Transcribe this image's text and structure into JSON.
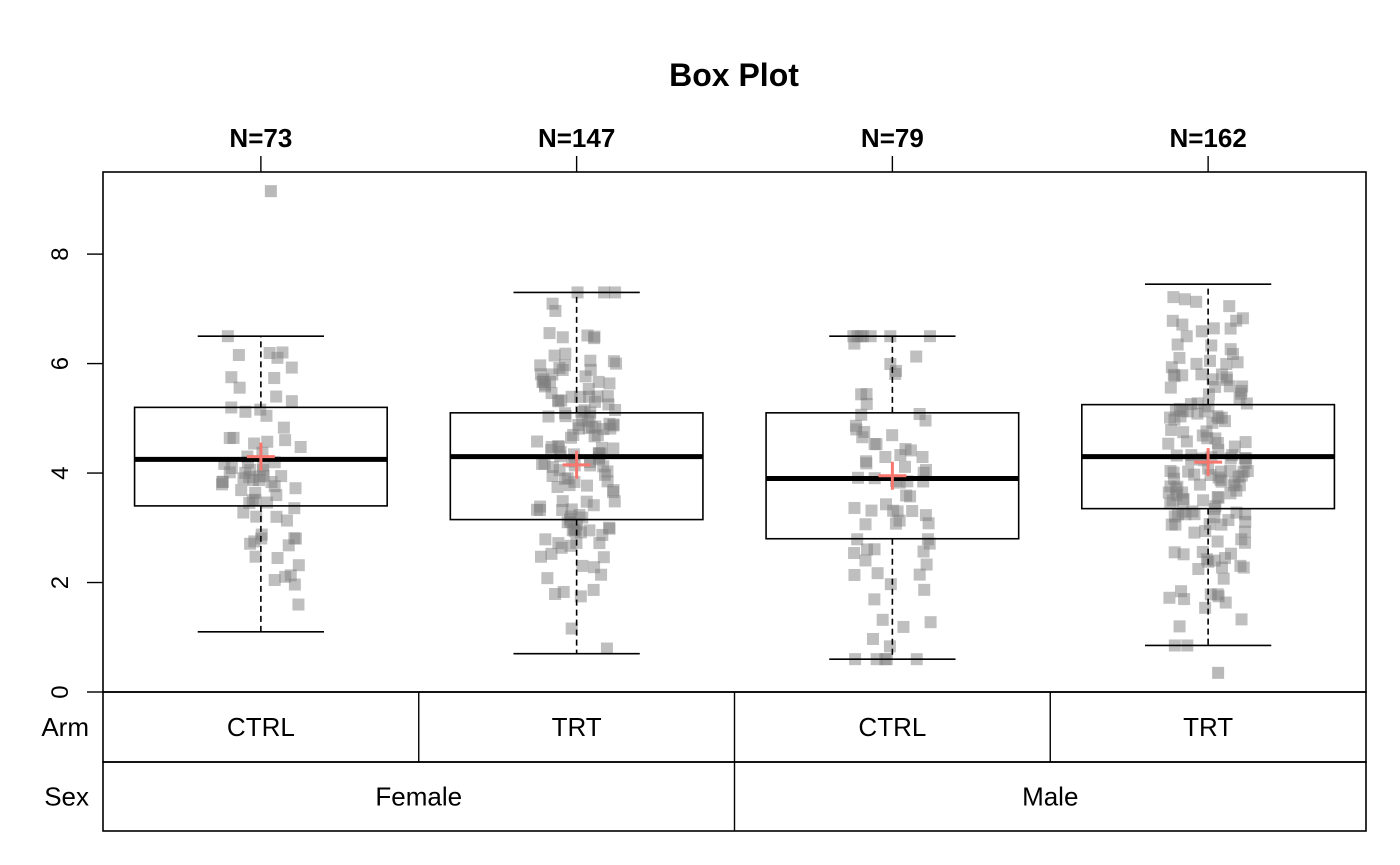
{
  "chart_data": {
    "type": "box",
    "title": "Box Plot",
    "ylim": [
      0,
      9.5
    ],
    "yticks": [
      0,
      2,
      4,
      6,
      8
    ],
    "grid": false,
    "row_labels": {
      "arm": "Arm",
      "sex": "Sex"
    },
    "groups": [
      {
        "arm": "CTRL",
        "sex": "Female",
        "n_label": "N=73",
        "n": 73,
        "whisker_low": 1.1,
        "q1": 3.4,
        "median": 4.25,
        "q3": 5.2,
        "whisker_high": 6.5,
        "mean": 4.3
      },
      {
        "arm": "TRT",
        "sex": "Female",
        "n_label": "N=147",
        "n": 147,
        "whisker_low": 0.7,
        "q1": 3.15,
        "median": 4.3,
        "q3": 5.1,
        "whisker_high": 7.3,
        "mean": 4.15
      },
      {
        "arm": "CTRL",
        "sex": "Male",
        "n_label": "N=79",
        "n": 79,
        "whisker_low": 0.6,
        "q1": 2.8,
        "median": 3.9,
        "q3": 5.1,
        "whisker_high": 6.5,
        "mean": 3.95
      },
      {
        "arm": "TRT",
        "sex": "Male",
        "n_label": "N=162",
        "n": 162,
        "whisker_low": 0.85,
        "q1": 3.35,
        "median": 4.3,
        "q3": 5.25,
        "whisker_high": 7.45,
        "mean": 4.2
      }
    ],
    "sex_groups": [
      "Female",
      "Male"
    ],
    "outliers": [
      {
        "group": 0,
        "value": 9.15
      },
      {
        "group": 3,
        "value": 0.35
      }
    ],
    "colors": {
      "points": "#808080",
      "mean_marker": "#f8766d",
      "box": "#000000"
    }
  }
}
